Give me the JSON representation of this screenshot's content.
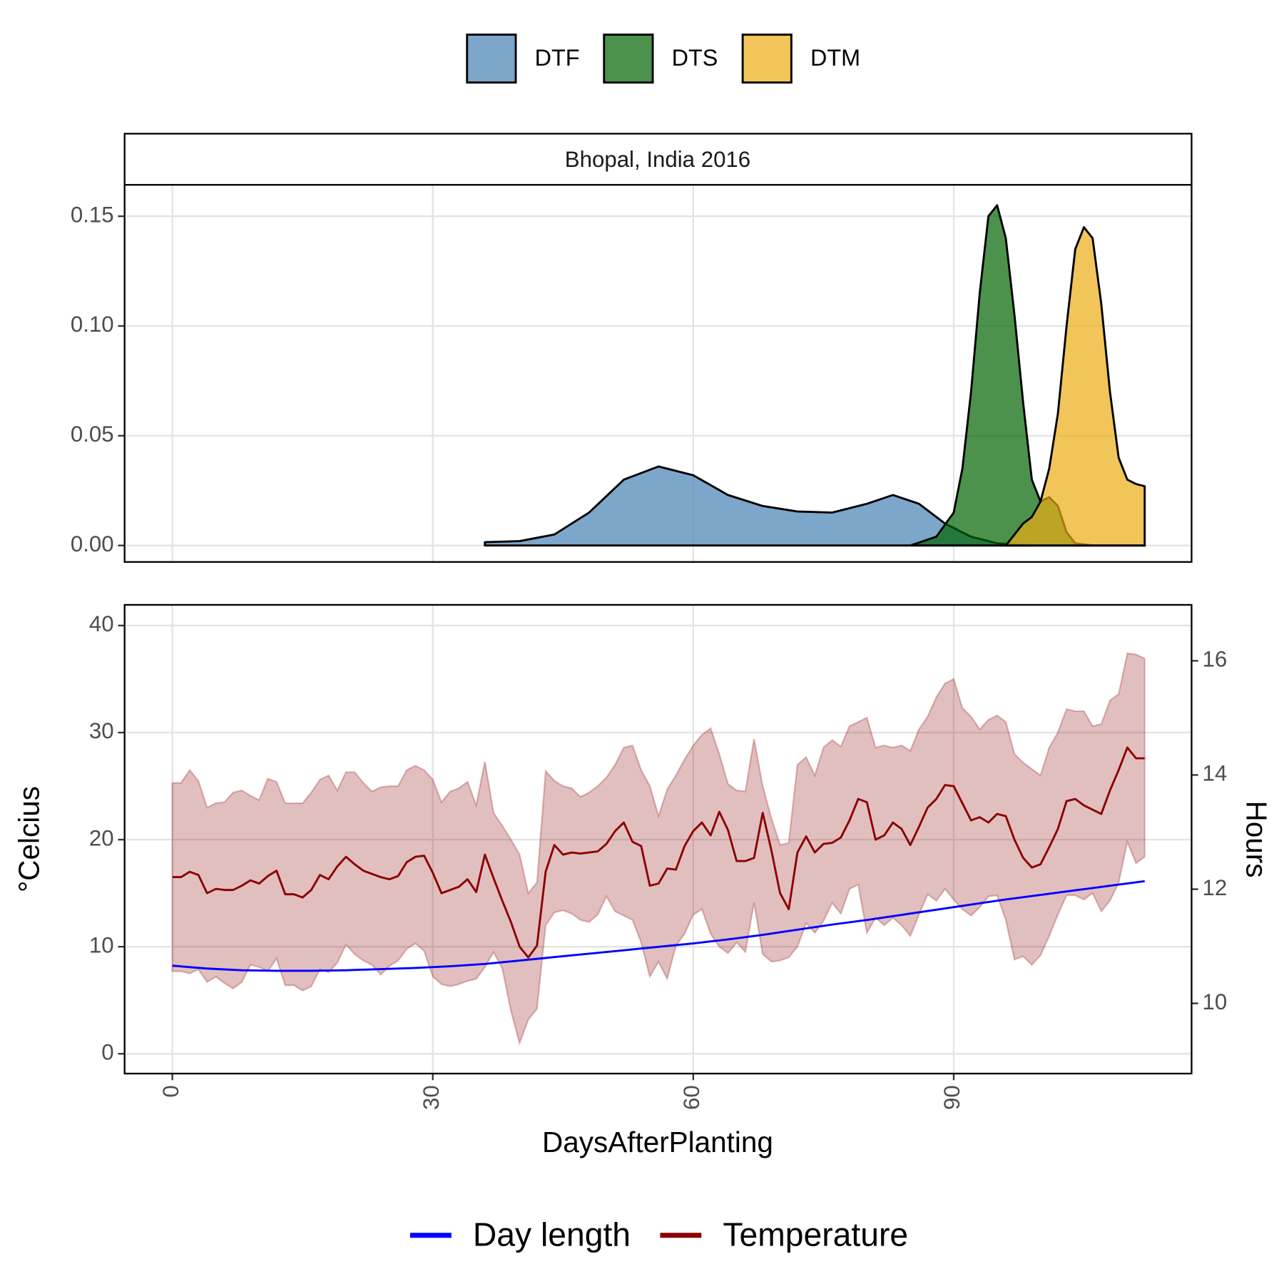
{
  "chart_data": [
    {
      "type": "area",
      "title": "Bhopal, India 2016",
      "legend": "top",
      "grid": true,
      "xlim": [
        -5.5,
        117.4
      ],
      "xticks": [
        0,
        30,
        60,
        90
      ],
      "ylim": [
        -0.0075,
        0.1643
      ],
      "yticks": [
        {
          "value": 0,
          "label": "0.00"
        },
        0.05,
        {
          "value": 0.1,
          "label": "0.10"
        },
        0.15
      ],
      "series": [
        {
          "name": "DTF",
          "color": "#4682b4",
          "x": [
            36,
            40,
            44,
            48,
            52,
            56,
            60,
            64,
            68,
            72,
            76,
            80,
            83,
            86,
            89,
            92,
            95,
            98,
            100,
            112
          ],
          "values": [
            0.0015,
            0.002,
            0.005,
            0.015,
            0.03,
            0.036,
            0.032,
            0.023,
            0.018,
            0.0155,
            0.015,
            0.019,
            0.023,
            0.019,
            0.01,
            0.004,
            0.001,
            0.0002,
            0,
            0
          ]
        },
        {
          "name": "DTS",
          "color": "#006400",
          "x": [
            85,
            88,
            90,
            91,
            92,
            93,
            94,
            95,
            96,
            97,
            98,
            99,
            100,
            101,
            102,
            103,
            104,
            106,
            112
          ],
          "values": [
            0,
            0.004,
            0.015,
            0.035,
            0.07,
            0.115,
            0.15,
            0.155,
            0.14,
            0.105,
            0.065,
            0.03,
            0.02,
            0.022,
            0.018,
            0.006,
            0.001,
            0,
            0
          ]
        },
        {
          "name": "DTM",
          "color": "#edad14",
          "x": [
            96,
            97,
            98,
            99,
            100,
            101,
            102,
            103,
            104,
            105,
            106,
            107,
            108,
            109,
            110,
            111,
            112
          ],
          "values": [
            0,
            0.005,
            0.01,
            0.013,
            0.02,
            0.035,
            0.06,
            0.1,
            0.135,
            0.145,
            0.14,
            0.11,
            0.07,
            0.04,
            0.03,
            0.028,
            0.027
          ]
        }
      ]
    },
    {
      "type": "line",
      "xlabel": "DaysAfterPlanting",
      "ylabel": "°Celcius",
      "y2label": "Hours",
      "legend": "bottom",
      "grid": true,
      "xlim": [
        -5.5,
        117.4
      ],
      "xticks": [
        0,
        30,
        60,
        90
      ],
      "ylim": [
        -1.85,
        41.93
      ],
      "yticks": [
        0,
        10,
        20,
        30,
        40
      ],
      "y2lim": [
        8.77,
        16.98
      ],
      "y2ticks": [
        10,
        12,
        14,
        16
      ],
      "x": [
        0,
        1,
        2,
        3,
        4,
        5,
        6,
        7,
        8,
        9,
        10,
        11,
        12,
        13,
        14,
        15,
        16,
        17,
        18,
        19,
        20,
        21,
        22,
        23,
        24,
        25,
        26,
        27,
        28,
        29,
        30,
        31,
        32,
        33,
        34,
        35,
        36,
        37,
        38,
        39,
        40,
        41,
        42,
        43,
        44,
        45,
        46,
        47,
        48,
        49,
        50,
        51,
        52,
        53,
        54,
        55,
        56,
        57,
        58,
        59,
        60,
        61,
        62,
        63,
        64,
        65,
        66,
        67,
        68,
        69,
        70,
        71,
        72,
        73,
        74,
        75,
        76,
        77,
        78,
        79,
        80,
        81,
        82,
        83,
        84,
        85,
        86,
        87,
        88,
        89,
        90,
        91,
        92,
        93,
        94,
        95,
        96,
        97,
        98,
        99,
        100,
        101,
        102,
        103,
        104,
        105,
        106,
        107,
        108,
        109,
        110,
        111,
        112
      ],
      "series": [
        {
          "name": "Day length",
          "color": "#0000ff",
          "axis": "y2",
          "x": [
            0,
            4,
            8,
            12,
            16,
            20,
            24,
            28,
            32,
            36,
            40,
            44,
            48,
            52,
            56,
            60,
            64,
            68,
            72,
            76,
            80,
            84,
            88,
            92,
            96,
            100,
            104,
            108,
            112
          ],
          "values": [
            10.66,
            10.61,
            10.58,
            10.57,
            10.57,
            10.58,
            10.6,
            10.62,
            10.65,
            10.69,
            10.75,
            10.81,
            10.87,
            10.93,
            10.99,
            11.05,
            11.12,
            11.2,
            11.29,
            11.38,
            11.46,
            11.55,
            11.64,
            11.73,
            11.82,
            11.9,
            11.98,
            12.06,
            12.14
          ]
        },
        {
          "name": "Temperature",
          "color": "#8b0000",
          "values": [
            16.5,
            16.5,
            17.0,
            16.7,
            15.0,
            15.4,
            15.3,
            15.3,
            15.7,
            16.2,
            15.9,
            16.6,
            17.1,
            14.9,
            14.9,
            14.6,
            15.3,
            16.7,
            16.3,
            17.5,
            18.4,
            17.7,
            17.1,
            16.8,
            16.5,
            16.3,
            16.6,
            17.9,
            18.4,
            18.5,
            16.9,
            15.0,
            15.3,
            15.6,
            16.3,
            15.1,
            18.6,
            16.4,
            14.3,
            12.3,
            10.0,
            9.0,
            10.1,
            17.0,
            19.5,
            18.6,
            18.8,
            18.7,
            18.8,
            18.9,
            19.6,
            20.8,
            21.6,
            19.8,
            19.4,
            15.7,
            15.9,
            17.3,
            17.2,
            19.4,
            20.8,
            21.6,
            20.4,
            22.6,
            20.9,
            18.0,
            18.0,
            18.3,
            22.5,
            19.0,
            15.0,
            13.5,
            18.8,
            20.3,
            18.8,
            19.6,
            19.7,
            20.2,
            21.8,
            23.8,
            23.5,
            20.0,
            20.4,
            21.6,
            21.0,
            19.5,
            21.2,
            23.0,
            23.8,
            25.1,
            25.0,
            23.4,
            21.8,
            22.1,
            21.6,
            22.4,
            22.2,
            20.0,
            18.3,
            17.4,
            17.7,
            19.3,
            21.0,
            23.6,
            23.8,
            23.2,
            22.8,
            22.4,
            24.6,
            26.5,
            28.6,
            27.6,
            27.6
          ],
          "lower": [
            7.7,
            7.7,
            7.5,
            7.9,
            6.7,
            7.2,
            6.6,
            6.1,
            6.7,
            8.3,
            8.1,
            7.7,
            8.9,
            6.4,
            6.4,
            5.9,
            6.3,
            7.9,
            7.6,
            8.5,
            10.2,
            9.3,
            8.7,
            8.3,
            7.4,
            8.2,
            8.7,
            9.8,
            10.3,
            9.6,
            7.2,
            6.5,
            6.3,
            6.5,
            6.8,
            7.0,
            8.1,
            9.5,
            8.0,
            4.0,
            1.0,
            3.2,
            4.2,
            12.0,
            13.2,
            13.4,
            13.1,
            12.5,
            12.3,
            13.0,
            14.7,
            13.3,
            12.9,
            12.5,
            10.4,
            7.2,
            8.6,
            7.0,
            10.1,
            11.2,
            13.0,
            13.5,
            11.2,
            10.0,
            9.4,
            10.4,
            9.5,
            14.1,
            9.3,
            8.6,
            8.7,
            9.0,
            10.0,
            12.2,
            11.3,
            12.4,
            14.1,
            13.1,
            15.4,
            15.8,
            11.3,
            12.7,
            12.0,
            12.7,
            12.0,
            11.0,
            13.0,
            14.9,
            14.3,
            15.4,
            14.4,
            13.5,
            12.9,
            13.7,
            14.7,
            14.8,
            12.5,
            8.8,
            9.1,
            8.3,
            9.2,
            11.0,
            13.0,
            14.8,
            14.8,
            14.4,
            15.0,
            13.3,
            14.3,
            16.0,
            19.8,
            17.8,
            18.4
          ],
          "upper": [
            25.3,
            25.3,
            26.5,
            25.5,
            23.0,
            23.4,
            23.5,
            24.4,
            24.6,
            24.1,
            23.7,
            25.7,
            25.4,
            23.4,
            23.4,
            23.4,
            24.4,
            25.6,
            26.0,
            24.6,
            26.3,
            26.3,
            25.3,
            24.5,
            24.9,
            25.0,
            25.0,
            26.5,
            26.9,
            26.5,
            25.6,
            23.5,
            24.5,
            24.8,
            25.4,
            23.2,
            27.3,
            22.5,
            21.3,
            20.0,
            18.6,
            15.0,
            16.0,
            26.4,
            25.5,
            25.0,
            24.8,
            24.0,
            24.4,
            25.0,
            25.8,
            27.0,
            28.6,
            28.8,
            26.5,
            25.0,
            22.2,
            24.7,
            26.0,
            27.5,
            28.8,
            29.8,
            30.4,
            28.0,
            25.2,
            24.6,
            24.5,
            29.4,
            25.0,
            22.0,
            19.5,
            19.7,
            27.0,
            27.7,
            26.0,
            28.6,
            29.3,
            28.7,
            30.6,
            31.0,
            31.4,
            28.6,
            28.8,
            28.6,
            28.8,
            28.3,
            30.3,
            31.5,
            33.3,
            34.6,
            35.0,
            32.3,
            31.5,
            30.3,
            31.2,
            31.6,
            31.0,
            28.0,
            27.2,
            26.6,
            26.0,
            28.6,
            30.0,
            32.2,
            32.0,
            32.0,
            30.6,
            30.8,
            33.0,
            33.6,
            37.4,
            37.3,
            36.9
          ]
        }
      ]
    }
  ]
}
